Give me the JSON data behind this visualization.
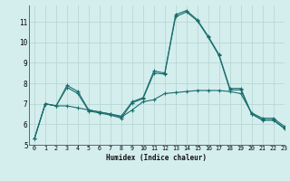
{
  "xlabel": "Humidex (Indice chaleur)",
  "bg_color": "#d4eeed",
  "grid_color": "#b8d8d5",
  "line_color": "#1a6e6e",
  "xlim": [
    -0.5,
    23
  ],
  "ylim": [
    5,
    11.8
  ],
  "yticks": [
    5,
    6,
    7,
    8,
    9,
    10,
    11
  ],
  "xticks": [
    0,
    1,
    2,
    3,
    4,
    5,
    6,
    7,
    8,
    9,
    10,
    11,
    12,
    13,
    14,
    15,
    16,
    17,
    18,
    19,
    20,
    21,
    22,
    23
  ],
  "series": [
    [
      5.3,
      7.0,
      6.9,
      7.9,
      7.6,
      6.7,
      6.6,
      6.5,
      6.4,
      7.1,
      7.3,
      8.6,
      8.5,
      11.35,
      11.55,
      11.1,
      10.3,
      9.4,
      7.75,
      7.75,
      6.5,
      6.2,
      6.2,
      5.8
    ],
    [
      5.3,
      7.0,
      6.9,
      6.9,
      6.8,
      6.7,
      6.6,
      6.5,
      6.35,
      6.7,
      7.1,
      7.2,
      7.5,
      7.55,
      7.6,
      7.65,
      7.65,
      7.65,
      7.6,
      7.5,
      6.55,
      6.3,
      6.3,
      5.9
    ],
    [
      5.3,
      7.0,
      6.9,
      7.8,
      7.5,
      6.65,
      6.55,
      6.45,
      6.3,
      7.05,
      7.25,
      8.5,
      8.45,
      11.25,
      11.48,
      11.05,
      10.25,
      9.35,
      7.68,
      7.68,
      6.52,
      6.22,
      6.22,
      5.82
    ]
  ]
}
